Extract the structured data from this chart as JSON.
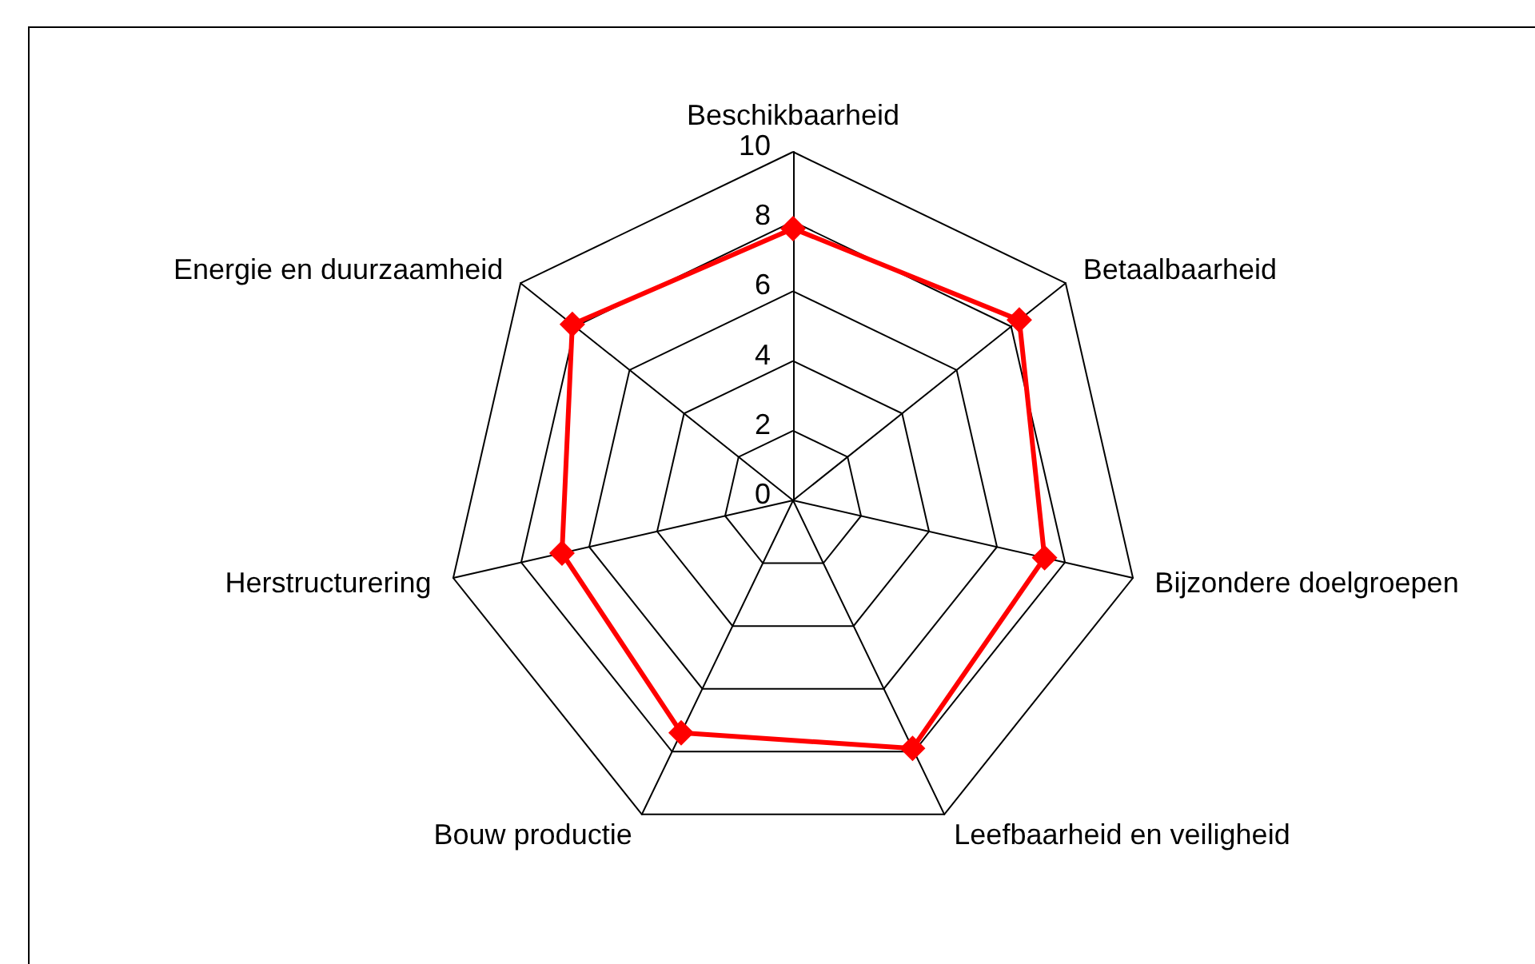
{
  "chart_data": {
    "type": "radar",
    "categories": [
      "Beschikbaarheid",
      "Betaalbaarheid",
      "Bijzondere doelgroepen",
      "Leefbaarheid en veiligheid",
      "Bouw productie",
      "Herstructurering",
      "Energie en duurzaamheid"
    ],
    "series": [
      {
        "color": "#ff0000",
        "values": [
          7.8,
          8.3,
          7.4,
          7.9,
          7.4,
          6.8,
          8.1
        ]
      }
    ],
    "ylim": [
      0,
      10
    ],
    "yticks": [
      0,
      2,
      4,
      6,
      8,
      10
    ],
    "marker": "diamond"
  }
}
